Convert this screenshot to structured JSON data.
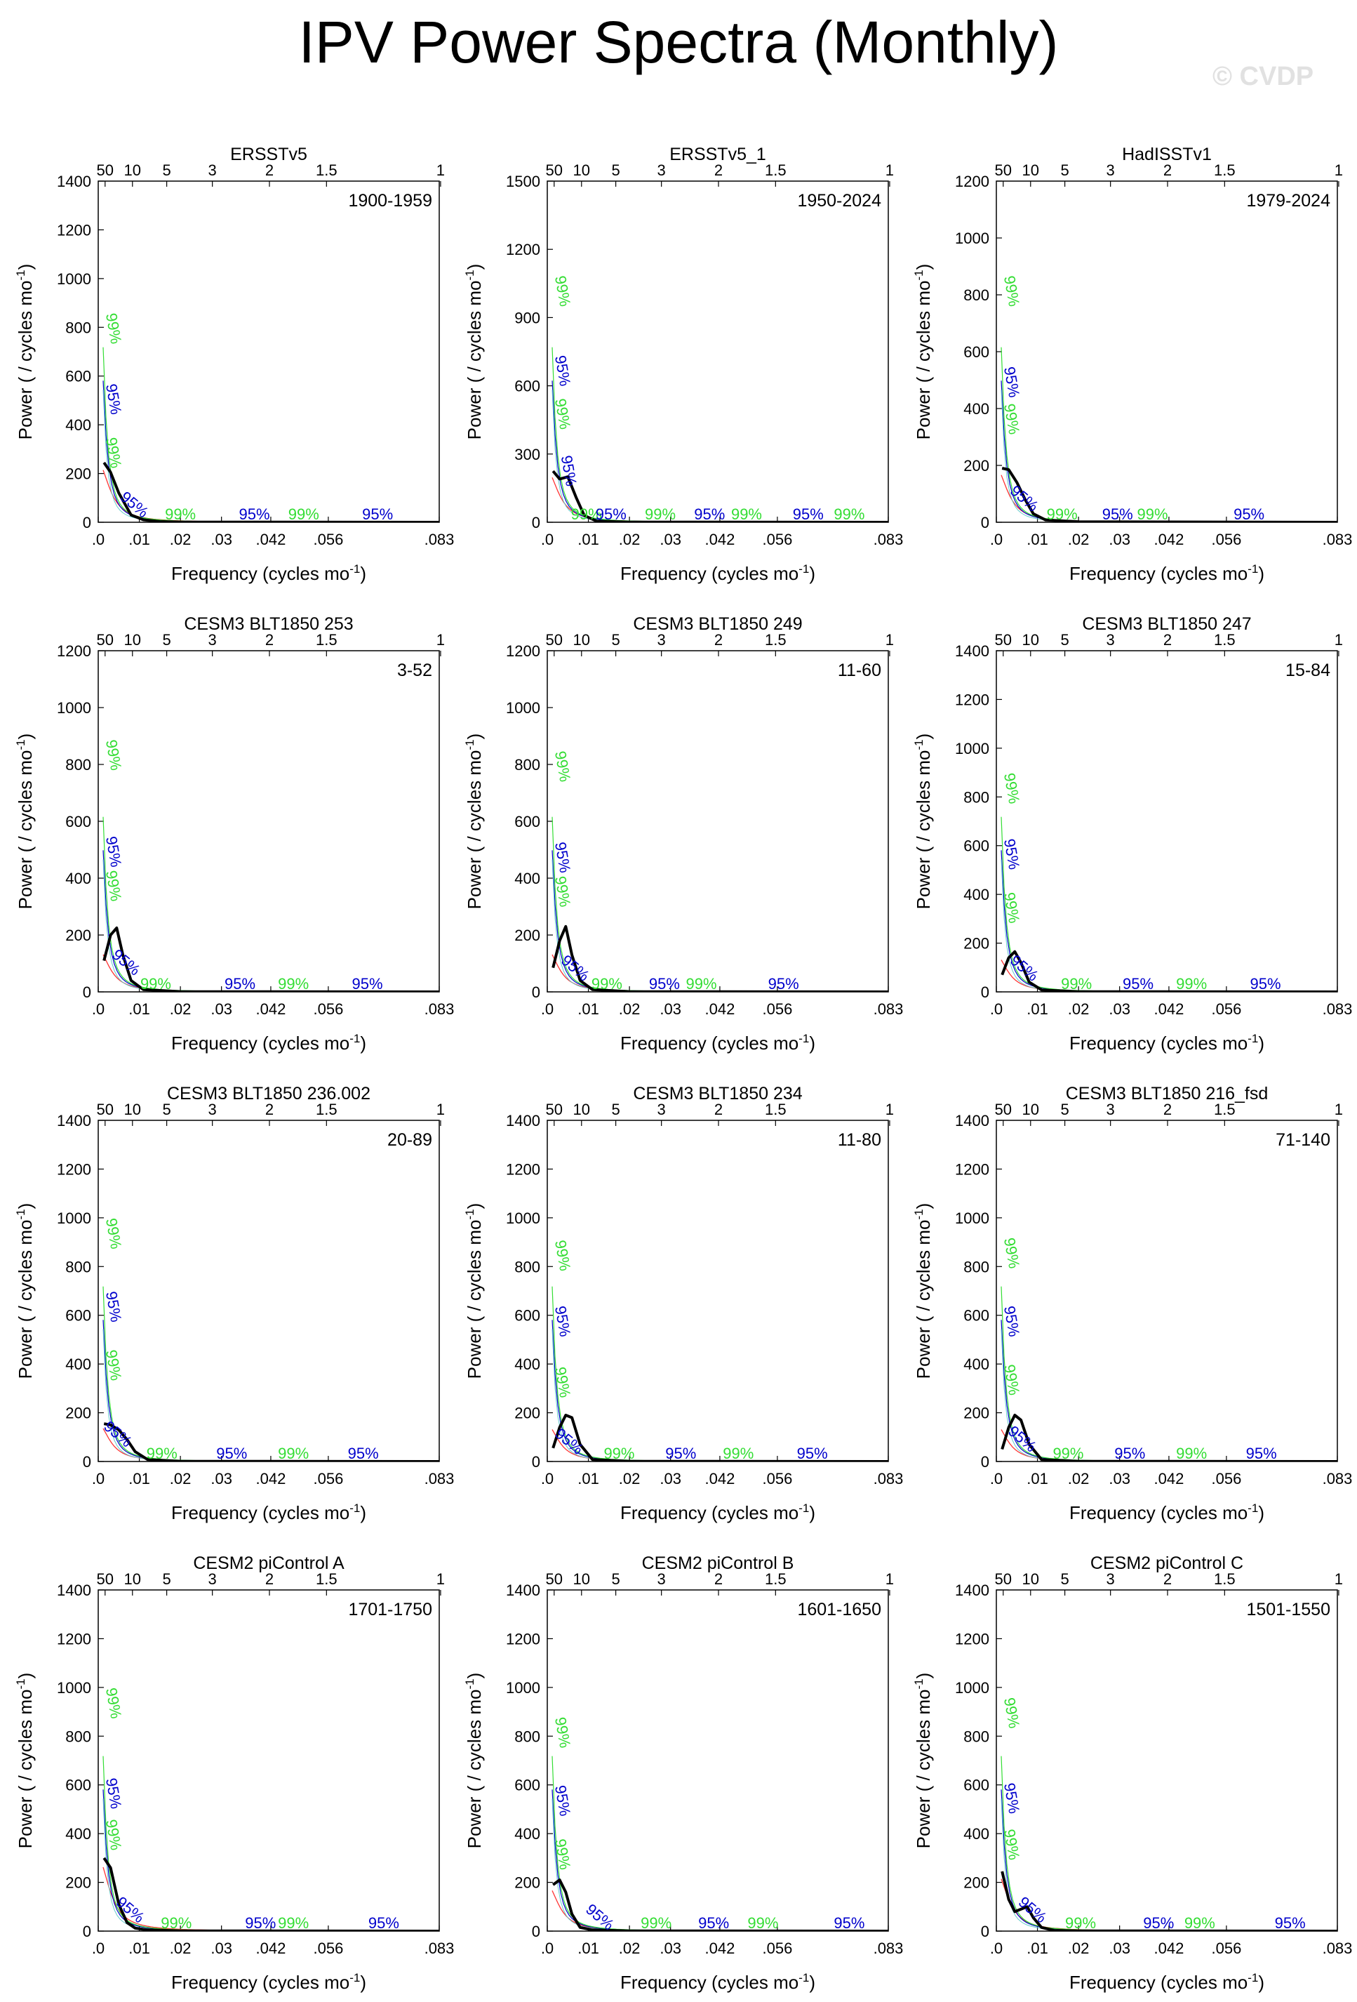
{
  "title": "IPV Power Spectra (Monthly)",
  "watermark": "© CVDP",
  "chart_data": [
    {
      "type": "line",
      "title": "ERSSTv5",
      "period": "1900-1959",
      "ylim": [
        0,
        1400
      ],
      "yticks": [
        0,
        200,
        400,
        600,
        800,
        1000,
        1200,
        1400
      ],
      "power": [
        [
          0.0014,
          245
        ],
        [
          0.003,
          205
        ],
        [
          0.005,
          120
        ],
        [
          0.008,
          30
        ],
        [
          0.011,
          10
        ],
        [
          0.015,
          3
        ],
        [
          0.02,
          1
        ],
        [
          0.083,
          0
        ]
      ],
      "labels99": [
        [
          0.0025,
          780
        ],
        [
          0.0025,
          270
        ],
        [
          0.02,
          0
        ],
        [
          0.05,
          0
        ]
      ],
      "labels95": [
        [
          0.0025,
          490
        ],
        [
          0.008,
          45
        ],
        [
          0.038,
          0
        ],
        [
          0.068,
          0
        ]
      ]
    },
    {
      "type": "line",
      "title": "ERSSTv5_1",
      "period": "1950-2024",
      "ylim": [
        0,
        1500
      ],
      "yticks": [
        0,
        300,
        600,
        900,
        1200,
        1500
      ],
      "power": [
        [
          0.0014,
          225
        ],
        [
          0.003,
          190
        ],
        [
          0.005,
          200
        ],
        [
          0.007,
          110
        ],
        [
          0.009,
          30
        ],
        [
          0.012,
          5
        ],
        [
          0.02,
          1
        ],
        [
          0.083,
          0
        ]
      ],
      "labels99": [
        [
          0.0025,
          1000
        ],
        [
          0.0025,
          460
        ],
        [
          0.0095,
          0
        ],
        [
          0.0275,
          0
        ],
        [
          0.0485,
          0
        ],
        [
          0.0735,
          0
        ]
      ],
      "labels95": [
        [
          0.0025,
          650
        ],
        [
          0.004,
          210
        ],
        [
          0.0155,
          0
        ],
        [
          0.0395,
          0
        ],
        [
          0.0635,
          0
        ]
      ]
    },
    {
      "type": "line",
      "title": "HadISSTv1",
      "period": "1979-2024",
      "ylim": [
        0,
        1200
      ],
      "yticks": [
        0,
        200,
        400,
        600,
        800,
        1000,
        1200
      ],
      "power": [
        [
          0.0014,
          190
        ],
        [
          0.003,
          185
        ],
        [
          0.005,
          140
        ],
        [
          0.007,
          80
        ],
        [
          0.009,
          30
        ],
        [
          0.012,
          8
        ],
        [
          0.02,
          2
        ],
        [
          0.083,
          0
        ]
      ],
      "labels99": [
        [
          0.0025,
          800
        ],
        [
          0.0025,
          350
        ],
        [
          0.016,
          0
        ],
        [
          0.038,
          0
        ]
      ],
      "labels95": [
        [
          0.0025,
          480
        ],
        [
          0.006,
          60
        ],
        [
          0.0295,
          0
        ],
        [
          0.0615,
          0
        ]
      ]
    },
    {
      "type": "line",
      "title": "CESM3 BLT1850 253",
      "period": "3-52",
      "ylim": [
        0,
        1200
      ],
      "yticks": [
        0,
        200,
        400,
        600,
        800,
        1000,
        1200
      ],
      "power": [
        [
          0.0014,
          110
        ],
        [
          0.003,
          200
        ],
        [
          0.0045,
          225
        ],
        [
          0.006,
          130
        ],
        [
          0.008,
          40
        ],
        [
          0.011,
          8
        ],
        [
          0.02,
          1
        ],
        [
          0.083,
          0
        ]
      ],
      "labels99": [
        [
          0.0025,
          820
        ],
        [
          0.0025,
          360
        ],
        [
          0.014,
          0
        ],
        [
          0.0475,
          0
        ]
      ],
      "labels95": [
        [
          0.0025,
          480
        ],
        [
          0.006,
          80
        ],
        [
          0.0345,
          0
        ],
        [
          0.0655,
          0
        ]
      ]
    },
    {
      "type": "line",
      "title": "CESM3 BLT1850 249",
      "period": "11-60",
      "ylim": [
        0,
        1200
      ],
      "yticks": [
        0,
        200,
        400,
        600,
        800,
        1000,
        1200
      ],
      "power": [
        [
          0.0014,
          85
        ],
        [
          0.003,
          180
        ],
        [
          0.0045,
          230
        ],
        [
          0.006,
          130
        ],
        [
          0.008,
          40
        ],
        [
          0.011,
          8
        ],
        [
          0.02,
          1
        ],
        [
          0.083,
          0
        ]
      ],
      "labels99": [
        [
          0.0025,
          780
        ],
        [
          0.0025,
          340
        ],
        [
          0.0145,
          0
        ],
        [
          0.0375,
          0
        ]
      ],
      "labels95": [
        [
          0.0025,
          460
        ],
        [
          0.006,
          60
        ],
        [
          0.0285,
          0
        ],
        [
          0.0575,
          0
        ]
      ]
    },
    {
      "type": "line",
      "title": "CESM3 BLT1850 247",
      "period": "15-84",
      "ylim": [
        0,
        1400
      ],
      "yticks": [
        0,
        200,
        400,
        600,
        800,
        1000,
        1200,
        1400
      ],
      "power": [
        [
          0.0014,
          70
        ],
        [
          0.003,
          140
        ],
        [
          0.0045,
          165
        ],
        [
          0.006,
          120
        ],
        [
          0.008,
          40
        ],
        [
          0.011,
          8
        ],
        [
          0.02,
          1
        ],
        [
          0.083,
          0
        ]
      ],
      "labels99": [
        [
          0.0025,
          820
        ],
        [
          0.0025,
          330
        ],
        [
          0.0195,
          0
        ],
        [
          0.0475,
          0
        ]
      ],
      "labels95": [
        [
          0.0025,
          550
        ],
        [
          0.006,
          70
        ],
        [
          0.0345,
          0
        ],
        [
          0.0655,
          0
        ]
      ]
    },
    {
      "type": "line",
      "title": "CESM3 BLT1850 236.002",
      "period": "20-89",
      "ylim": [
        0,
        1400
      ],
      "yticks": [
        0,
        200,
        400,
        600,
        800,
        1000,
        1200,
        1400
      ],
      "power": [
        [
          0.0014,
          155
        ],
        [
          0.003,
          150
        ],
        [
          0.005,
          130
        ],
        [
          0.007,
          90
        ],
        [
          0.009,
          40
        ],
        [
          0.012,
          8
        ],
        [
          0.02,
          1
        ],
        [
          0.083,
          0
        ]
      ],
      "labels99": [
        [
          0.0025,
          920
        ],
        [
          0.0025,
          380
        ],
        [
          0.0155,
          0
        ],
        [
          0.0475,
          0
        ]
      ],
      "labels95": [
        [
          0.0025,
          620
        ],
        [
          0.004,
          85
        ],
        [
          0.0325,
          0
        ],
        [
          0.0645,
          0
        ]
      ]
    },
    {
      "type": "line",
      "title": "CESM3 BLT1850 234",
      "period": "11-80",
      "ylim": [
        0,
        1400
      ],
      "yticks": [
        0,
        200,
        400,
        600,
        800,
        1000,
        1200,
        1400
      ],
      "power": [
        [
          0.0014,
          55
        ],
        [
          0.003,
          140
        ],
        [
          0.0045,
          190
        ],
        [
          0.006,
          180
        ],
        [
          0.008,
          70
        ],
        [
          0.011,
          8
        ],
        [
          0.02,
          1
        ],
        [
          0.083,
          0
        ]
      ],
      "labels99": [
        [
          0.0025,
          830
        ],
        [
          0.0025,
          310
        ],
        [
          0.0175,
          0
        ],
        [
          0.0465,
          0
        ]
      ],
      "labels95": [
        [
          0.0025,
          560
        ],
        [
          0.0045,
          55
        ],
        [
          0.0325,
          0
        ],
        [
          0.0645,
          0
        ]
      ]
    },
    {
      "type": "line",
      "title": "CESM3 BLT1850 216_fsd",
      "period": "71-140",
      "ylim": [
        0,
        1400
      ],
      "yticks": [
        0,
        200,
        400,
        600,
        800,
        1000,
        1200,
        1400
      ],
      "power": [
        [
          0.0014,
          50
        ],
        [
          0.003,
          140
        ],
        [
          0.0045,
          190
        ],
        [
          0.006,
          170
        ],
        [
          0.008,
          70
        ],
        [
          0.011,
          8
        ],
        [
          0.02,
          1
        ],
        [
          0.083,
          0
        ]
      ],
      "labels99": [
        [
          0.0025,
          840
        ],
        [
          0.0025,
          320
        ],
        [
          0.0175,
          0
        ],
        [
          0.0475,
          0
        ]
      ],
      "labels95": [
        [
          0.0025,
          560
        ],
        [
          0.0055,
          65
        ],
        [
          0.0325,
          0
        ],
        [
          0.0645,
          0
        ]
      ]
    },
    {
      "type": "line",
      "title": "CESM2 piControl A",
      "period": "1701-1750",
      "ylim": [
        0,
        1400
      ],
      "yticks": [
        0,
        200,
        400,
        600,
        800,
        1000,
        1200,
        1400
      ],
      "power": [
        [
          0.0014,
          300
        ],
        [
          0.003,
          260
        ],
        [
          0.005,
          110
        ],
        [
          0.007,
          35
        ],
        [
          0.009,
          12
        ],
        [
          0.012,
          5
        ],
        [
          0.02,
          1
        ],
        [
          0.083,
          0
        ]
      ],
      "labels99": [
        [
          0.0025,
          920
        ],
        [
          0.0025,
          380
        ],
        [
          0.019,
          0
        ],
        [
          0.0475,
          0
        ]
      ],
      "labels95": [
        [
          0.0025,
          550
        ],
        [
          0.007,
          60
        ],
        [
          0.0395,
          0
        ],
        [
          0.0695,
          0
        ]
      ]
    },
    {
      "type": "line",
      "title": "CESM2 piControl B",
      "period": "1601-1650",
      "ylim": [
        0,
        1400
      ],
      "yticks": [
        0,
        200,
        400,
        600,
        800,
        1000,
        1200,
        1400
      ],
      "power": [
        [
          0.0014,
          190
        ],
        [
          0.003,
          210
        ],
        [
          0.0045,
          160
        ],
        [
          0.006,
          70
        ],
        [
          0.008,
          15
        ],
        [
          0.011,
          5
        ],
        [
          0.02,
          1
        ],
        [
          0.083,
          0
        ]
      ],
      "labels99": [
        [
          0.0025,
          800
        ],
        [
          0.0025,
          300
        ],
        [
          0.0265,
          0
        ],
        [
          0.0525,
          0
        ]
      ],
      "labels95": [
        [
          0.0025,
          520
        ],
        [
          0.012,
          30
        ],
        [
          0.0405,
          0
        ],
        [
          0.0735,
          0
        ]
      ]
    },
    {
      "type": "line",
      "title": "CESM2 piControl C",
      "period": "1501-1550",
      "ylim": [
        0,
        1400
      ],
      "yticks": [
        0,
        200,
        400,
        600,
        800,
        1000,
        1200,
        1400
      ],
      "power": [
        [
          0.0014,
          245
        ],
        [
          0.003,
          130
        ],
        [
          0.0045,
          80
        ],
        [
          0.006,
          90
        ],
        [
          0.0075,
          100
        ],
        [
          0.009,
          55
        ],
        [
          0.011,
          15
        ],
        [
          0.014,
          3
        ],
        [
          0.02,
          1
        ],
        [
          0.083,
          0
        ]
      ],
      "labels99": [
        [
          0.0025,
          880
        ],
        [
          0.0025,
          340
        ],
        [
          0.0205,
          0
        ],
        [
          0.0495,
          0
        ]
      ],
      "labels95": [
        [
          0.0025,
          530
        ],
        [
          0.008,
          60
        ],
        [
          0.0395,
          0
        ],
        [
          0.0715,
          0
        ]
      ]
    }
  ],
  "axes": {
    "xlabel": "Frequency (cycles mo",
    "xlabel_sup": "-1",
    "xlabel_end": ")",
    "ylabel": "Power ( / cycles mo",
    "ylabel_sup": "-1",
    "ylabel_end": ")",
    "xticks": [
      [
        0,
        ".0"
      ],
      [
        0.01,
        ".01"
      ],
      [
        0.02,
        ".02"
      ],
      [
        0.03,
        ".03"
      ],
      [
        0.042,
        ".042"
      ],
      [
        0.056,
        ".056"
      ],
      [
        0.083,
        ".083"
      ]
    ],
    "top_ticks": [
      [
        0.00167,
        "50"
      ],
      [
        0.00833,
        "10"
      ],
      [
        0.01667,
        "5"
      ],
      [
        0.02778,
        "3"
      ],
      [
        0.04167,
        "2"
      ],
      [
        0.05556,
        "1.5"
      ],
      [
        0.08333,
        "1"
      ]
    ],
    "label99": "99%",
    "label95": "95%"
  },
  "colors": {
    "power": "#000000",
    "red": "#ff3333",
    "green": "#33dd33",
    "blue": "#0000cc",
    "cyan": "#66cccc"
  }
}
